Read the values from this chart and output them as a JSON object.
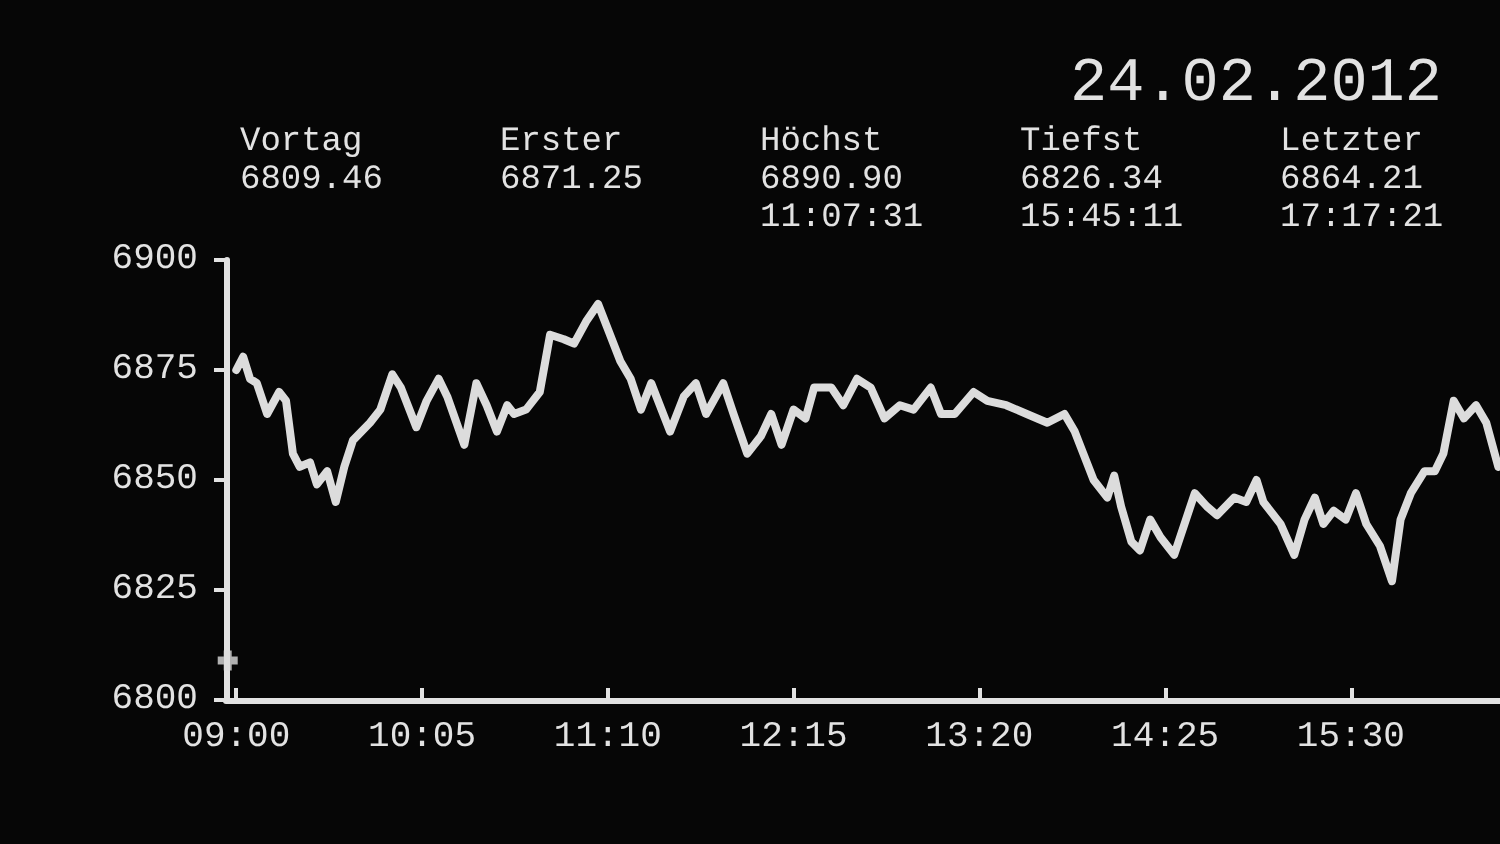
{
  "chart_data": {
    "type": "line",
    "title": "24.02.2012",
    "annotations": [
      "Vortag\n6809.46",
      "Erster\n6871.25",
      "Höchst\n6890.90\n11:07:31",
      "Tiefst\n6826.34\n15:45:11",
      "Letzter\n6864.21\n17:17:21"
    ],
    "xlim": [
      8.94,
      16.37
    ],
    "xticks": [
      {
        "value": 9,
        "label": "09:00"
      },
      {
        "value": 10.0833,
        "label": "10:05"
      },
      {
        "value": 11.1667,
        "label": "11:10"
      },
      {
        "value": 12.25,
        "label": "12:15"
      },
      {
        "value": 13.3333,
        "label": "13:20"
      },
      {
        "value": 14.4167,
        "label": "14:25"
      },
      {
        "value": 15.5,
        "label": "15:30"
      }
    ],
    "ylim": [
      6800,
      6900
    ],
    "yticks": [
      6800,
      6825,
      6850,
      6875,
      6900
    ],
    "series": [
      {
        "color": "#dcdcdc",
        "x": [
          9.0,
          9.04,
          9.08,
          9.12,
          9.18,
          9.25,
          9.29,
          9.33,
          9.37,
          9.43,
          9.47,
          9.53,
          9.58,
          9.63,
          9.68,
          9.78,
          9.84,
          9.91,
          9.96,
          10.05,
          10.11,
          10.18,
          10.23,
          10.33,
          10.4,
          10.46,
          10.52,
          10.58,
          10.62,
          10.69,
          10.77,
          10.83,
          10.91,
          10.97,
          11.04,
          11.11,
          11.16,
          11.24,
          11.3,
          11.36,
          11.42,
          11.53,
          11.61,
          11.68,
          11.74,
          11.84,
          11.9,
          11.98,
          12.06,
          12.12,
          12.18,
          12.25,
          12.32,
          12.37,
          12.47,
          12.54,
          12.62,
          12.7,
          12.78,
          12.87,
          12.95,
          13.05,
          13.11,
          13.19,
          13.3,
          13.38,
          13.49,
          13.61,
          13.73,
          13.83,
          13.89,
          13.94,
          14.0,
          14.08,
          14.12,
          14.16,
          14.22,
          14.27,
          14.33,
          14.39,
          14.47,
          14.53,
          14.59,
          14.66,
          14.72,
          14.82,
          14.89,
          14.95,
          14.99,
          15.09,
          15.17,
          15.23,
          15.29,
          15.34,
          15.4,
          15.47,
          15.53,
          15.59,
          15.67,
          15.74,
          15.79,
          15.85,
          15.93,
          15.99,
          16.04,
          16.1,
          16.16,
          16.23,
          16.29,
          16.36
        ],
        "values": [
          6875,
          6878,
          6873,
          6872,
          6865,
          6870,
          6868,
          6856,
          6853,
          6854,
          6849,
          6852,
          6845,
          6853,
          6859,
          6863,
          6866,
          6874,
          6871,
          6862,
          6868,
          6873,
          6869,
          6858,
          6872,
          6867,
          6861,
          6867,
          6865,
          6866,
          6870,
          6883,
          6882,
          6881,
          6886,
          6890,
          6885,
          6877,
          6873,
          6866,
          6872,
          6861,
          6869,
          6872,
          6865,
          6872,
          6865,
          6856,
          6860,
          6865,
          6858,
          6866,
          6864,
          6871,
          6871,
          6867,
          6873,
          6871,
          6864,
          6867,
          6866,
          6871,
          6865,
          6865,
          6870,
          6868,
          6867,
          6865,
          6863,
          6865,
          6861,
          6856,
          6850,
          6846,
          6851,
          6844,
          6836,
          6834,
          6841,
          6837,
          6833,
          6840,
          6847,
          6844,
          6842,
          6846,
          6845,
          6850,
          6845,
          6840,
          6833,
          6841,
          6846,
          6840,
          6843,
          6841,
          6847,
          6840,
          6835,
          6827,
          6841,
          6847,
          6852,
          6852,
          6856,
          6868,
          6864,
          6867,
          6863,
          6853
        ]
      },
      {
        "type": "scatter",
        "color": "#dcdcdc",
        "marker": "cross",
        "x": [
          8.95
        ],
        "values": [
          6809
        ]
      }
    ]
  }
}
